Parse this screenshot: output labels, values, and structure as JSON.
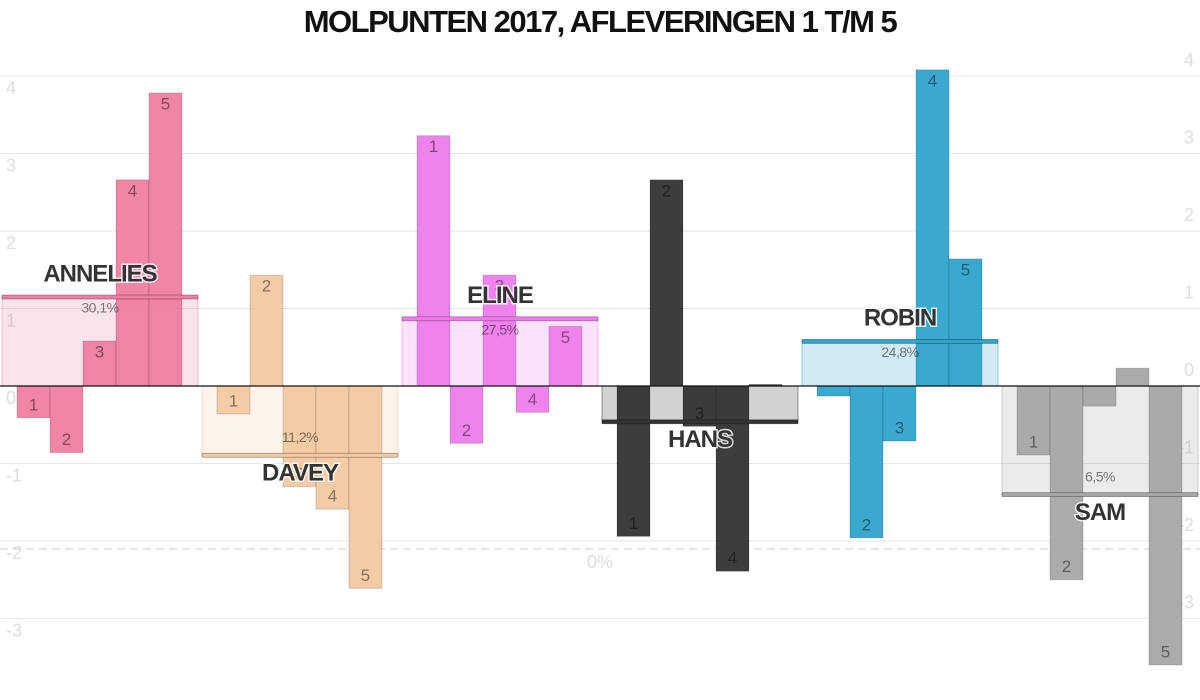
{
  "chart_data": {
    "type": "bar",
    "title": "MOLPUNTEN 2017, AFLEVERINGEN 1 T/M 5",
    "categories": [
      "1",
      "2",
      "3",
      "4",
      "5"
    ],
    "series": [
      {
        "name": "ANNELIES",
        "color": "#ef7ea0",
        "values": [
          -0.41,
          -0.86,
          0.58,
          2.66,
          3.78
        ],
        "percent": 30.1,
        "percent_label": "30,1%"
      },
      {
        "name": "DAVEY",
        "color": "#f2c9a2",
        "values": [
          -0.36,
          1.43,
          -1.3,
          -1.59,
          -2.61
        ],
        "percent": 11.2,
        "percent_label": "11,2%"
      },
      {
        "name": "ELINE",
        "color": "#ee7cec",
        "values": [
          3.23,
          -0.74,
          1.43,
          -0.34,
          0.77
        ],
        "percent": 27.5,
        "percent_label": "27,5%"
      },
      {
        "name": "HANS",
        "color": "#333333",
        "values": [
          -1.94,
          2.66,
          -0.52,
          -2.39,
          0.02
        ],
        "percent": 15.2
      },
      {
        "name": "ROBIN",
        "color": "#2fa4cc",
        "values": [
          -0.13,
          -1.96,
          -0.71,
          4.08,
          1.64
        ],
        "percent": 24.8,
        "percent_label": "24,8%"
      },
      {
        "name": "SAM",
        "color": "#a6a6a6",
        "values": [
          -0.89,
          -2.5,
          -0.26,
          0.23,
          -3.6
        ],
        "percent": 6.5,
        "percent_label": "6,5%"
      }
    ],
    "ylim": [
      -3.8,
      4.4
    ],
    "yticks": [
      -3,
      -2,
      -1,
      0,
      1,
      2,
      3,
      4
    ],
    "y2lim": [
      -15.7,
      60.2
    ],
    "y2ticks": [
      {
        "value": 0,
        "label": "0%"
      }
    ],
    "grid": true
  }
}
